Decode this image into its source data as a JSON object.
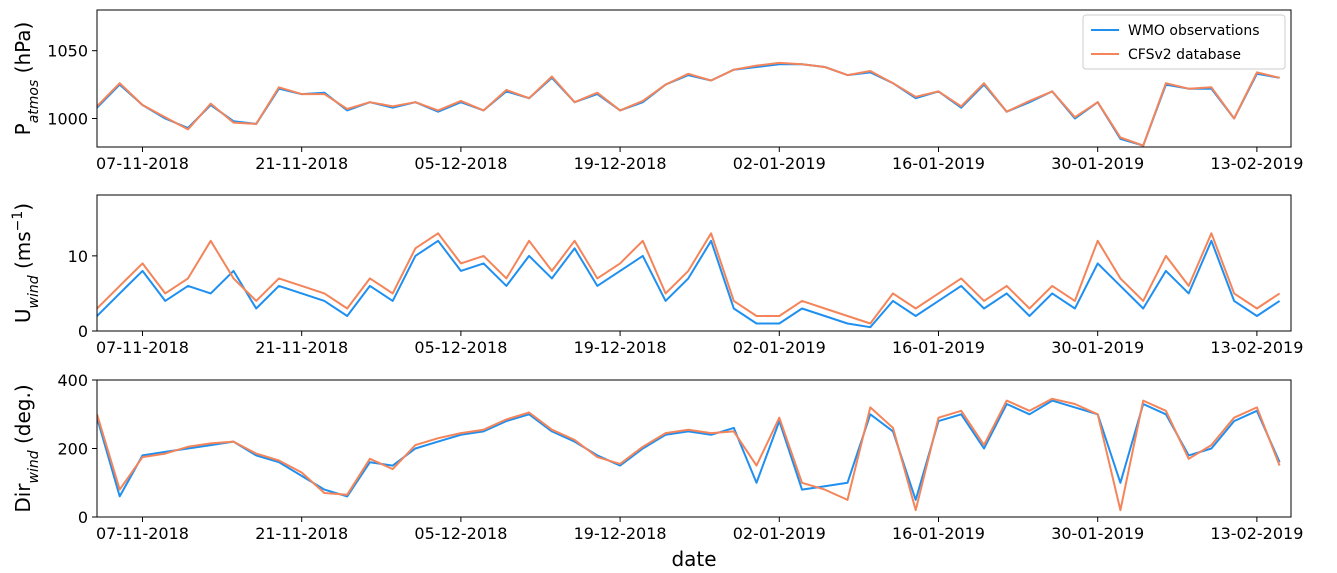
{
  "chart_data": [
    {
      "type": "line",
      "ylabel": [
        {
          "text": "P"
        },
        {
          "text": "atmos",
          "style": "sub"
        },
        {
          "text": " (hPa)"
        }
      ],
      "x": [
        "03-11-2018",
        "05-11-2018",
        "07-11-2018",
        "09-11-2018",
        "11-11-2018",
        "13-11-2018",
        "15-11-2018",
        "17-11-2018",
        "19-11-2018",
        "21-11-2018",
        "23-11-2018",
        "25-11-2018",
        "27-11-2018",
        "29-11-2018",
        "01-12-2018",
        "03-12-2018",
        "05-12-2018",
        "07-12-2018",
        "09-12-2018",
        "11-12-2018",
        "13-12-2018",
        "15-12-2018",
        "17-12-2018",
        "19-12-2018",
        "21-12-2018",
        "23-12-2018",
        "25-12-2018",
        "27-12-2018",
        "29-12-2018",
        "31-12-2018",
        "02-01-2019",
        "04-01-2019",
        "06-01-2019",
        "08-01-2019",
        "10-01-2019",
        "12-01-2019",
        "14-01-2019",
        "16-01-2019",
        "18-01-2019",
        "20-01-2019",
        "22-01-2019",
        "24-01-2019",
        "26-01-2019",
        "28-01-2019",
        "30-01-2019",
        "01-02-2019",
        "03-02-2019",
        "05-02-2019",
        "07-02-2019",
        "09-02-2019",
        "11-02-2019",
        "13-02-2019",
        "15-02-2019"
      ],
      "series": [
        {
          "name": "WMO observations",
          "color": "#1f8ff0",
          "values": [
            1008,
            1025,
            1010,
            1000,
            993,
            1010,
            998,
            996,
            1022,
            1018,
            1019,
            1006,
            1012,
            1008,
            1012,
            1005,
            1012,
            1006,
            1020,
            1015,
            1030,
            1012,
            1018,
            1006,
            1012,
            1025,
            1032,
            1028,
            1036,
            1038,
            1040,
            1040,
            1038,
            1032,
            1034,
            1026,
            1015,
            1020,
            1008,
            1025,
            1005,
            1012,
            1020,
            1000,
            1012,
            985,
            980,
            1025,
            1022,
            1022,
            1000,
            1033,
            1030
          ]
        },
        {
          "name": "CFSv2 database",
          "color": "#f4845a",
          "values": [
            1009,
            1026,
            1010,
            1001,
            992,
            1011,
            997,
            996,
            1023,
            1018,
            1018,
            1007,
            1012,
            1009,
            1012,
            1006,
            1013,
            1006,
            1021,
            1015,
            1031,
            1012,
            1019,
            1006,
            1013,
            1025,
            1033,
            1028,
            1036,
            1039,
            1041,
            1040,
            1038,
            1032,
            1035,
            1026,
            1016,
            1020,
            1009,
            1026,
            1005,
            1013,
            1020,
            1001,
            1012,
            986,
            980,
            1026,
            1022,
            1023,
            1000,
            1034,
            1030
          ]
        }
      ],
      "xlim": [
        "03-11-2018",
        "16-02-2019"
      ],
      "xticks": [
        "07-11-2018",
        "21-11-2018",
        "05-12-2018",
        "19-12-2018",
        "02-01-2019",
        "16-01-2019",
        "30-01-2019",
        "13-02-2019"
      ],
      "ylim": [
        979,
        1080
      ],
      "yticks": [
        1000,
        1050
      ],
      "legend": "upper right"
    },
    {
      "type": "line",
      "ylabel": [
        {
          "text": "U"
        },
        {
          "text": "wind",
          "style": "sub"
        },
        {
          "text": " (ms"
        },
        {
          "text": "−1",
          "style": "sup"
        },
        {
          "text": ")"
        }
      ],
      "x": [
        "03-11-2018",
        "05-11-2018",
        "07-11-2018",
        "09-11-2018",
        "11-11-2018",
        "13-11-2018",
        "15-11-2018",
        "17-11-2018",
        "19-11-2018",
        "21-11-2018",
        "23-11-2018",
        "25-11-2018",
        "27-11-2018",
        "29-11-2018",
        "01-12-2018",
        "03-12-2018",
        "05-12-2018",
        "07-12-2018",
        "09-12-2018",
        "11-12-2018",
        "13-12-2018",
        "15-12-2018",
        "17-12-2018",
        "19-12-2018",
        "21-12-2018",
        "23-12-2018",
        "25-12-2018",
        "27-12-2018",
        "29-12-2018",
        "31-12-2018",
        "02-01-2019",
        "04-01-2019",
        "06-01-2019",
        "08-01-2019",
        "10-01-2019",
        "12-01-2019",
        "14-01-2019",
        "16-01-2019",
        "18-01-2019",
        "20-01-2019",
        "22-01-2019",
        "24-01-2019",
        "26-01-2019",
        "28-01-2019",
        "30-01-2019",
        "01-02-2019",
        "03-02-2019",
        "05-02-2019",
        "07-02-2019",
        "09-02-2019",
        "11-02-2019",
        "13-02-2019",
        "15-02-2019"
      ],
      "series": [
        {
          "name": "WMO observations",
          "color": "#1f8ff0",
          "values": [
            2,
            5,
            8,
            4,
            6,
            5,
            8,
            3,
            6,
            5,
            4,
            2,
            6,
            4,
            10,
            12,
            8,
            9,
            6,
            10,
            7,
            11,
            6,
            8,
            10,
            4,
            7,
            12,
            3,
            1,
            1,
            3,
            2,
            1,
            0.5,
            4,
            2,
            4,
            6,
            3,
            5,
            2,
            5,
            3,
            9,
            6,
            3,
            8,
            5,
            12,
            4,
            2,
            4
          ]
        },
        {
          "name": "CFSv2 database",
          "color": "#f4845a",
          "values": [
            3,
            6,
            9,
            5,
            7,
            12,
            7,
            4,
            7,
            6,
            5,
            3,
            7,
            5,
            11,
            13,
            9,
            10,
            7,
            12,
            8,
            12,
            7,
            9,
            12,
            5,
            8,
            13,
            4,
            2,
            2,
            4,
            3,
            2,
            1,
            5,
            3,
            5,
            7,
            4,
            6,
            3,
            6,
            4,
            12,
            7,
            4,
            10,
            6,
            13,
            5,
            3,
            5
          ]
        }
      ],
      "xlim": [
        "03-11-2018",
        "16-02-2019"
      ],
      "xticks": [
        "07-11-2018",
        "21-11-2018",
        "05-12-2018",
        "19-12-2018",
        "02-01-2019",
        "16-01-2019",
        "30-01-2019",
        "13-02-2019"
      ],
      "ylim": [
        0,
        18.1
      ],
      "yticks": [
        0,
        10
      ]
    },
    {
      "type": "line",
      "ylabel": [
        {
          "text": "Dir"
        },
        {
          "text": "wind",
          "style": "sub"
        },
        {
          "text": " (deg.)"
        }
      ],
      "xlabel": "date",
      "x": [
        "03-11-2018",
        "05-11-2018",
        "07-11-2018",
        "09-11-2018",
        "11-11-2018",
        "13-11-2018",
        "15-11-2018",
        "17-11-2018",
        "19-11-2018",
        "21-11-2018",
        "23-11-2018",
        "25-11-2018",
        "27-11-2018",
        "29-11-2018",
        "01-12-2018",
        "03-12-2018",
        "05-12-2018",
        "07-12-2018",
        "09-12-2018",
        "11-12-2018",
        "13-12-2018",
        "15-12-2018",
        "17-12-2018",
        "19-12-2018",
        "21-12-2018",
        "23-12-2018",
        "25-12-2018",
        "27-12-2018",
        "29-12-2018",
        "31-12-2018",
        "02-01-2019",
        "04-01-2019",
        "06-01-2019",
        "08-01-2019",
        "10-01-2019",
        "12-01-2019",
        "14-01-2019",
        "16-01-2019",
        "18-01-2019",
        "20-01-2019",
        "22-01-2019",
        "24-01-2019",
        "26-01-2019",
        "28-01-2019",
        "30-01-2019",
        "01-02-2019",
        "03-02-2019",
        "05-02-2019",
        "07-02-2019",
        "09-02-2019",
        "11-02-2019",
        "13-02-2019",
        "15-02-2019"
      ],
      "series": [
        {
          "name": "WMO observations",
          "color": "#1f8ff0",
          "values": [
            290,
            60,
            180,
            190,
            200,
            210,
            220,
            180,
            160,
            120,
            80,
            60,
            160,
            150,
            200,
            220,
            240,
            250,
            280,
            300,
            250,
            220,
            180,
            150,
            200,
            240,
            250,
            240,
            260,
            100,
            280,
            80,
            90,
            100,
            300,
            250,
            50,
            280,
            300,
            200,
            330,
            300,
            340,
            320,
            300,
            100,
            330,
            300,
            180,
            200,
            280,
            310,
            160
          ]
        },
        {
          "name": "CFSv2 database",
          "color": "#f4845a",
          "values": [
            300,
            80,
            175,
            185,
            205,
            215,
            220,
            185,
            165,
            130,
            70,
            65,
            170,
            140,
            210,
            230,
            245,
            255,
            285,
            305,
            255,
            225,
            175,
            155,
            205,
            245,
            255,
            245,
            250,
            150,
            290,
            100,
            80,
            50,
            320,
            260,
            20,
            290,
            310,
            210,
            340,
            310,
            345,
            330,
            300,
            20,
            340,
            310,
            170,
            210,
            290,
            320,
            150
          ]
        }
      ],
      "xlim": [
        "03-11-2018",
        "16-02-2019"
      ],
      "xticks": [
        "07-11-2018",
        "21-11-2018",
        "05-12-2018",
        "19-12-2018",
        "02-01-2019",
        "16-01-2019",
        "30-01-2019",
        "13-02-2019"
      ],
      "ylim": [
        0,
        400
      ],
      "yticks": [
        0,
        200,
        400
      ]
    }
  ]
}
